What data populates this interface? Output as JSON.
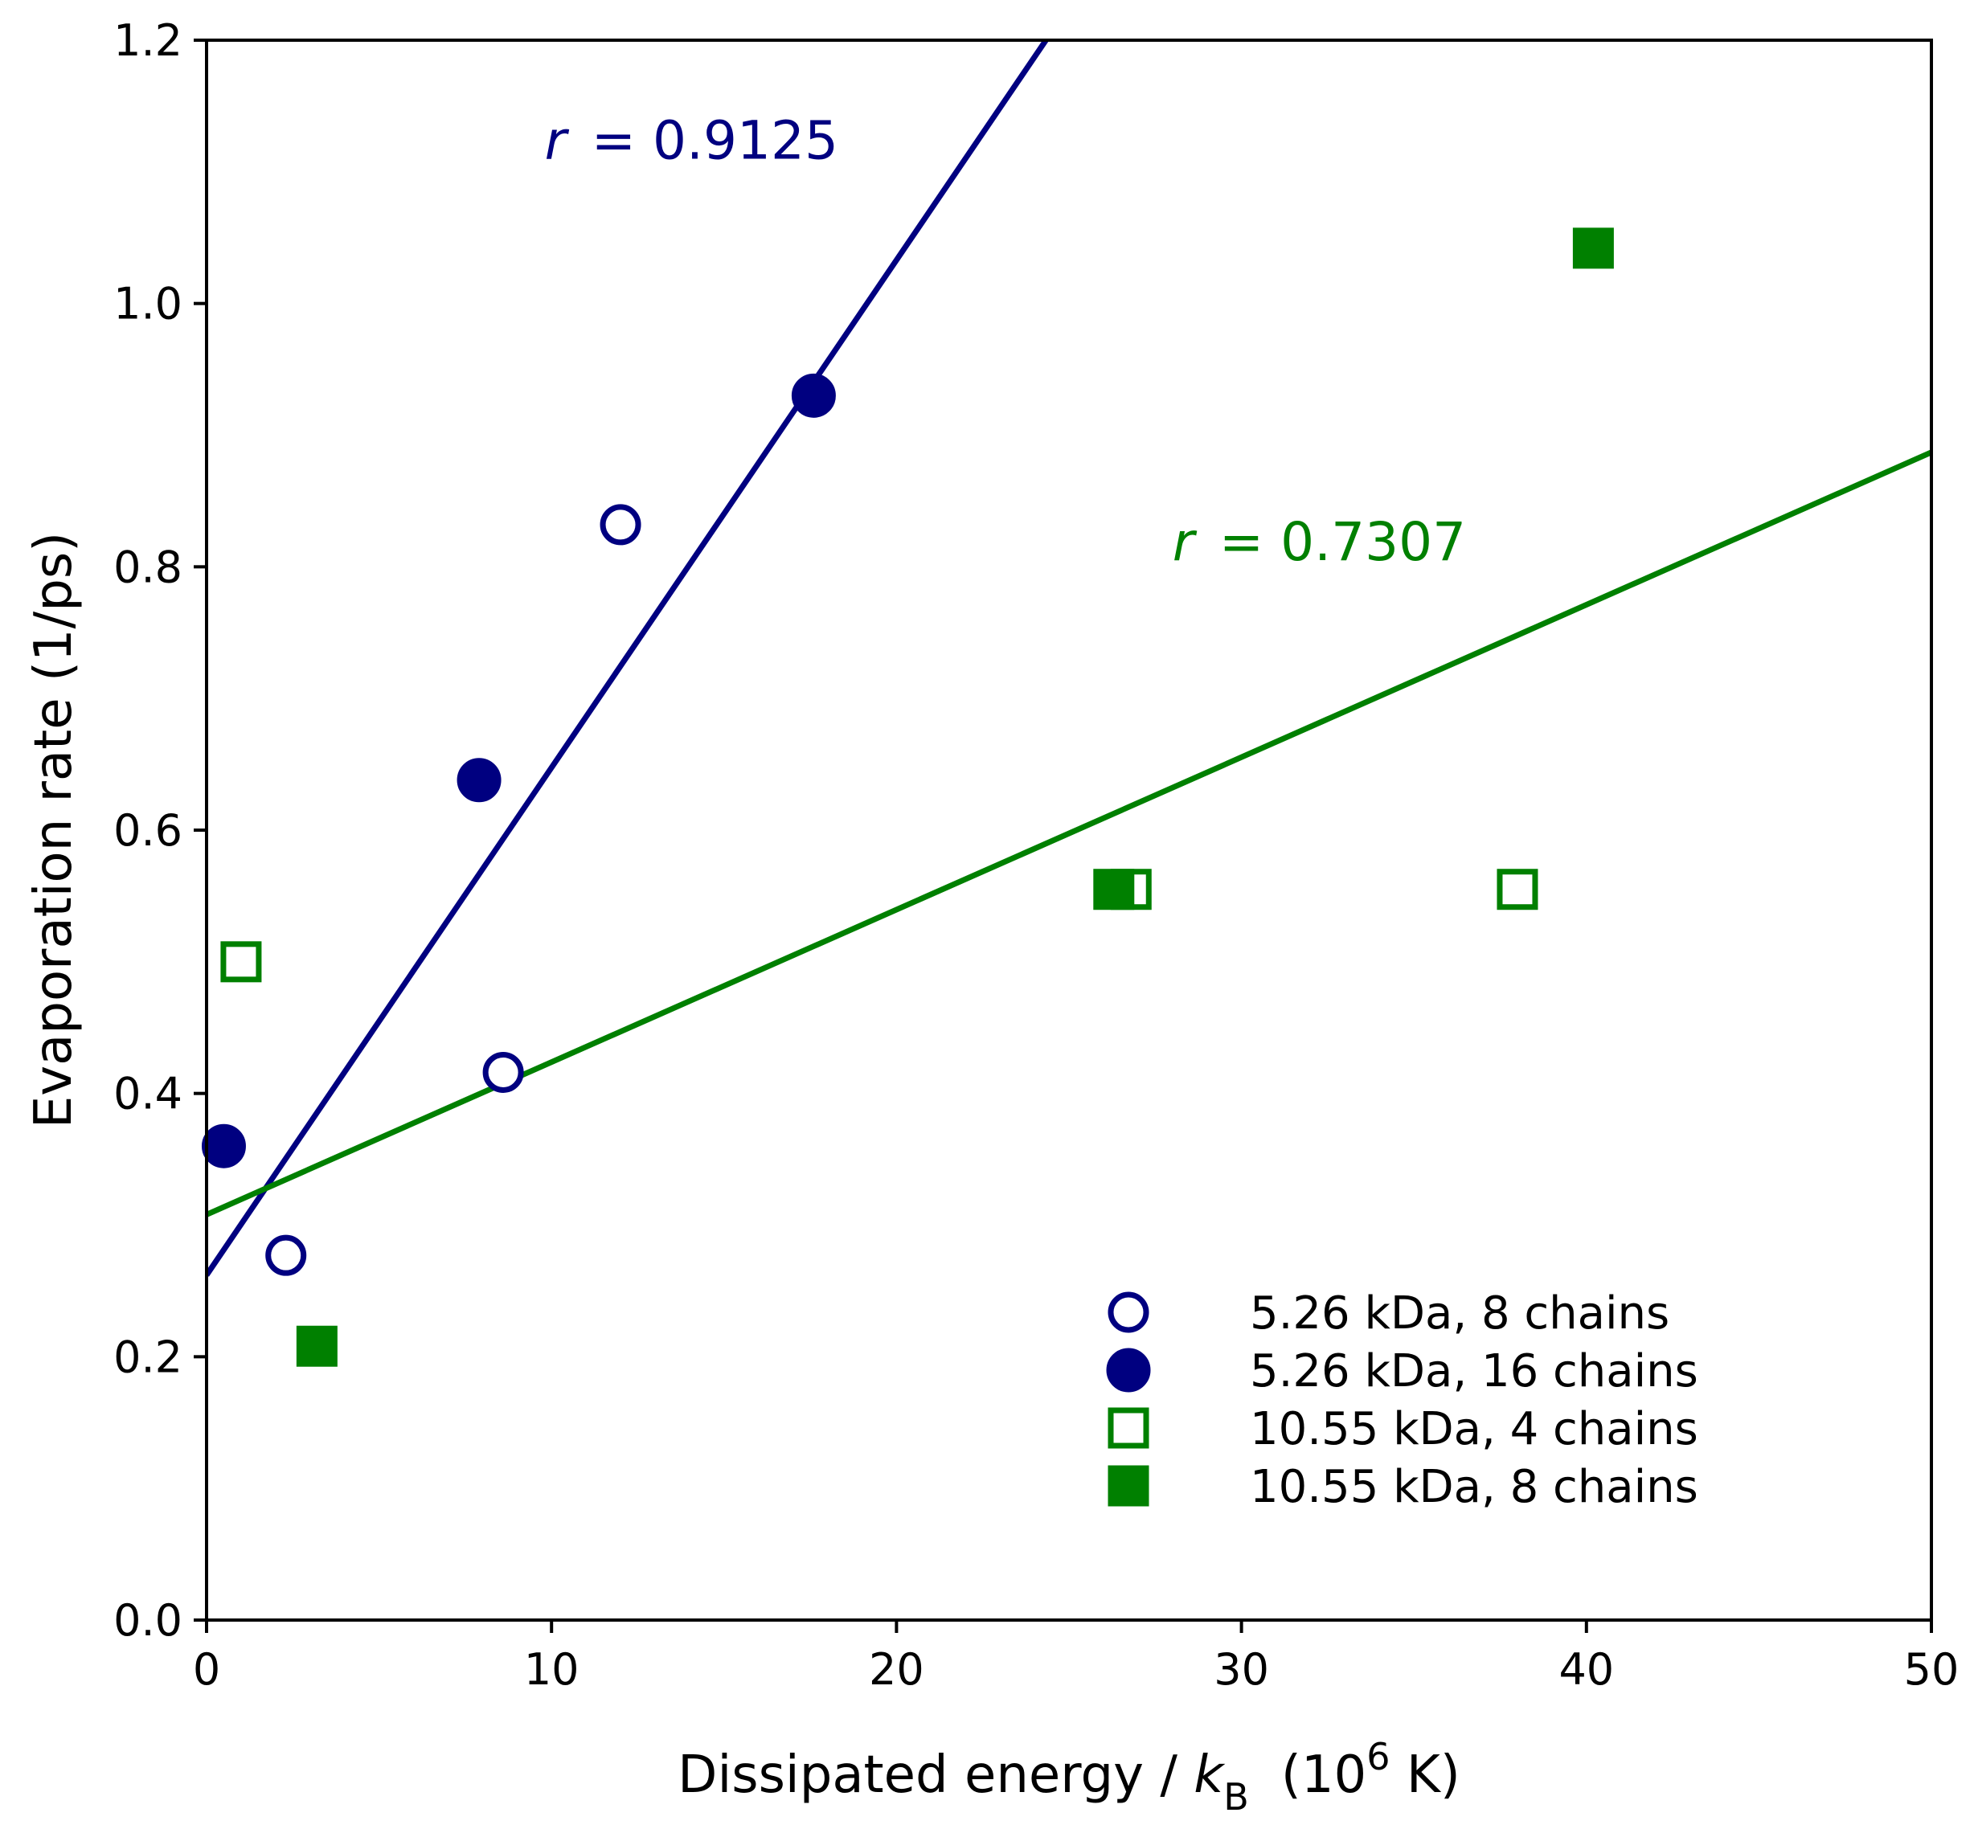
{
  "chart_data": {
    "type": "scatter",
    "title": "",
    "xlabel": {
      "main": "Dissipated energy / ",
      "italic": "k",
      "sub": "B",
      "unit_open": "(10",
      "sup": "6",
      "unit_close": " K)"
    },
    "ylabel": "Evaporation rate (1/ps)",
    "xlim": [
      0,
      50
    ],
    "ylim": [
      0,
      1.2
    ],
    "x_ticks": [
      0,
      10,
      20,
      30,
      40,
      50
    ],
    "x_tick_labels": [
      "0",
      "10",
      "20",
      "30",
      "40",
      "50"
    ],
    "y_ticks": [
      0.0,
      0.2,
      0.4,
      0.6,
      0.8,
      1.0,
      1.2
    ],
    "y_tick_labels": [
      "0.0",
      "0.2",
      "0.4",
      "0.6",
      "0.8",
      "1.0",
      "1.2"
    ],
    "series": [
      {
        "name": "5.26 kDa, 8 chains",
        "marker": "circle",
        "filled": false,
        "color": "#000080",
        "points": [
          [
            2.3,
            0.277
          ],
          [
            8.6,
            0.416
          ],
          [
            12.0,
            0.832
          ]
        ]
      },
      {
        "name": "5.26 kDa, 16 chains",
        "marker": "circle",
        "filled": true,
        "color": "#000080",
        "points": [
          [
            0.5,
            0.36
          ],
          [
            7.9,
            0.638
          ],
          [
            17.6,
            0.93
          ]
        ]
      },
      {
        "name": "10.55 kDa, 4 chains",
        "marker": "square",
        "filled": false,
        "color": "#008000",
        "points": [
          [
            1.0,
            0.5
          ],
          [
            26.8,
            0.555
          ],
          [
            38.0,
            0.555
          ]
        ]
      },
      {
        "name": "10.55 kDa, 8 chains",
        "marker": "square",
        "filled": true,
        "color": "#008000",
        "points": [
          [
            3.2,
            0.208
          ],
          [
            26.3,
            0.555
          ],
          [
            40.2,
            1.042
          ]
        ]
      }
    ],
    "fit_lines": [
      {
        "color": "#000080",
        "intercept": 0.262,
        "slope": 0.03855,
        "label_prefix": "r",
        "label_value": " = 0.9125",
        "label_x": 9.8,
        "label_y": 1.11
      },
      {
        "color": "#008000",
        "intercept": 0.308,
        "slope": 0.01158,
        "label_prefix": "r",
        "label_value": " = 0.7307",
        "label_x": 28.0,
        "label_y": 0.805
      }
    ],
    "legend_position": "lower-right",
    "grid": false
  }
}
